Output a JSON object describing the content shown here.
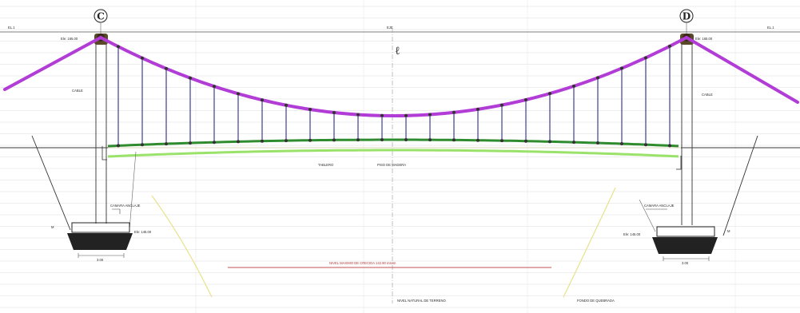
{
  "drawing": {
    "left_axis_label": "C",
    "right_axis_label": "D",
    "centerline_symbol": "ℓ",
    "colors": {
      "main_cable": "#b23cd6",
      "hangers": "#2c2c8a",
      "deck_top": "#2e8b2e",
      "deck_bottom": "#9be26a",
      "ground": "#3a3a3a",
      "gridlines": "#dcdcdc",
      "tower": "#444444",
      "footing": "#222222",
      "red_line": "#c0504d",
      "yellow_line": "#e8e28a"
    },
    "labels": {
      "top_left_tag": "EL.1",
      "top_center_tag": "EJE",
      "top_right_tag": "EL.1",
      "left_tower_elev": "Ele: 165.00",
      "right_tower_elev": "Ele: 165.00",
      "left_cable_tag": "CABLE",
      "right_cable_tag": "CABLE",
      "deck_span_left": "TABLERO",
      "deck_span_right": "PISO DE MADERA",
      "left_anchor_tag": "CAMARA ANCLAJE",
      "right_anchor_tag": "CAMARA ANCLAJE",
      "left_footing_elev": "Ele: 145.00",
      "right_footing_elev": "Ele: 145.00",
      "left_footing_width": "3.00",
      "right_footing_width": "3.00",
      "max_flood_level": "NIVEL MAXIMO DE CRECIDA 142.90 msnm",
      "terrain_level": "NIVEL NATURAL DE TERRENO",
      "river_bed": "FONDO DE QUEBRADA",
      "left_marker": "M",
      "right_marker": "M"
    }
  }
}
